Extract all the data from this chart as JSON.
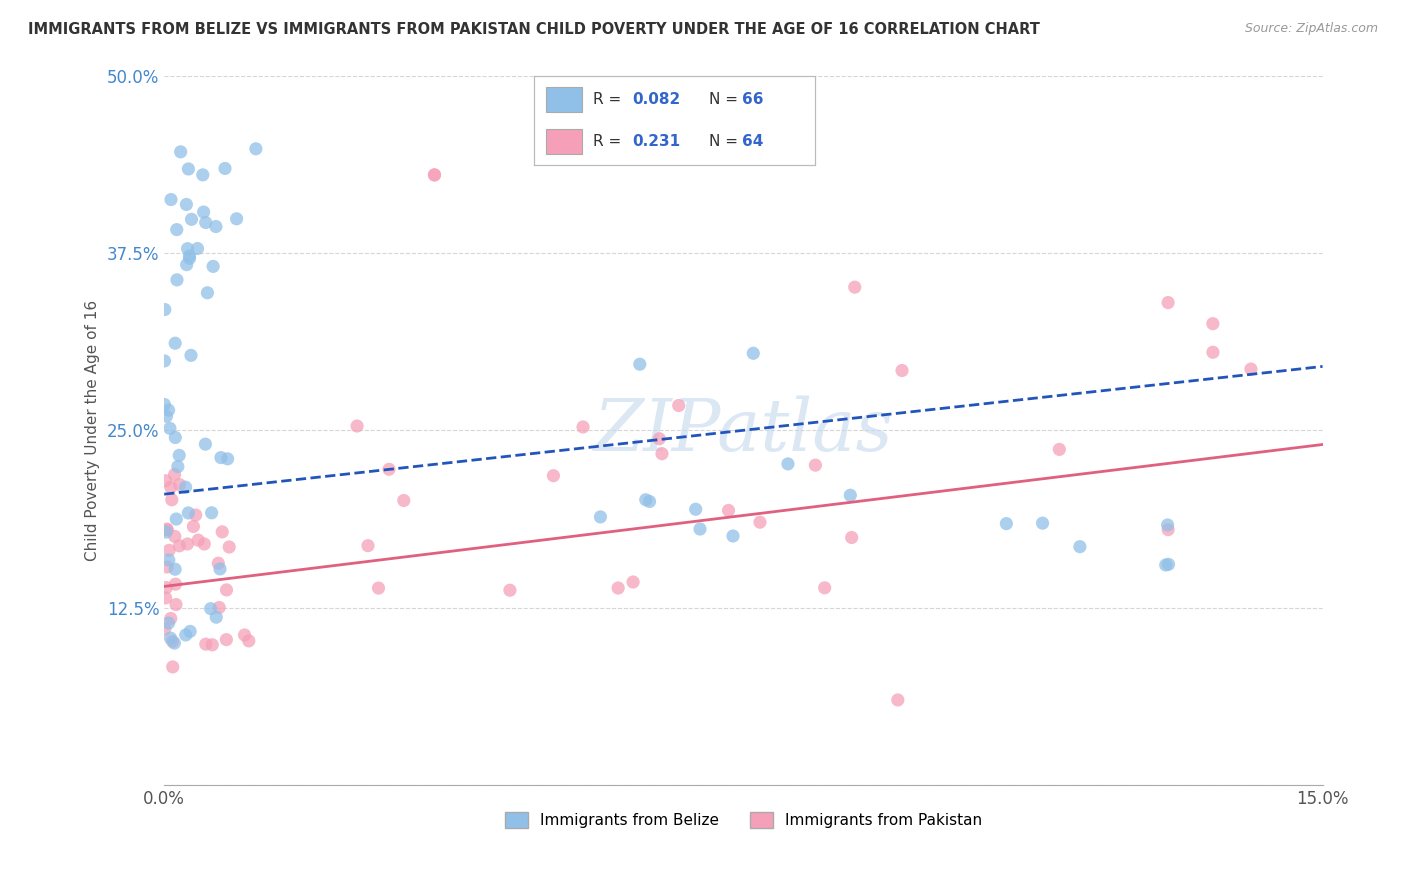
{
  "title": "IMMIGRANTS FROM BELIZE VS IMMIGRANTS FROM PAKISTAN CHILD POVERTY UNDER THE AGE OF 16 CORRELATION CHART",
  "source": "Source: ZipAtlas.com",
  "ylabel": "Child Poverty Under the Age of 16",
  "watermark": "ZIPatlas",
  "xlim": [
    0,
    0.15
  ],
  "ylim": [
    0,
    0.5
  ],
  "yticks": [
    0.0,
    0.125,
    0.25,
    0.375,
    0.5
  ],
  "ytick_labels": [
    "",
    "12.5%",
    "25.0%",
    "37.5%",
    "50.0%"
  ],
  "xtick_labels": [
    "0.0%",
    "",
    "",
    "15.0%"
  ],
  "color_belize": "#90C0E8",
  "color_pakistan": "#F5A0B8",
  "color_trend_belize": "#2255BB",
  "color_trend_pakistan": "#E06080",
  "background_color": "#FFFFFF",
  "grid_color": "#CCCCCC",
  "trend_belize_y0": 0.205,
  "trend_belize_y1": 0.295,
  "trend_pakistan_y0": 0.14,
  "trend_pakistan_y1": 0.24
}
